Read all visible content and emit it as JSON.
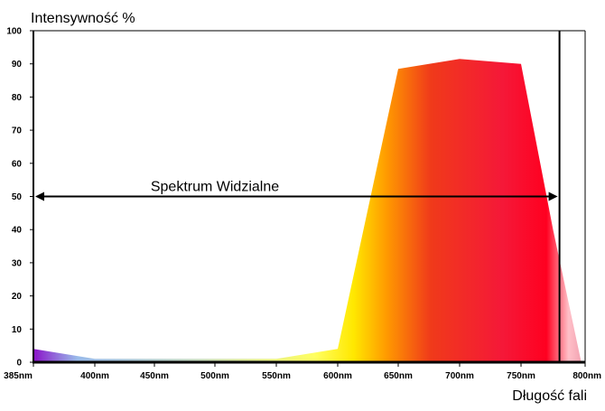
{
  "chart_data": {
    "type": "area",
    "title": "",
    "ylabel": "Intensywność %",
    "xlabel": "Długość fali",
    "x_ticks": [
      "385nm",
      "400nm",
      "450nm",
      "500nm",
      "550nm",
      "600nm",
      "650nm",
      "700nm",
      "750nm",
      "800nm"
    ],
    "y_ticks": [
      "0",
      "10",
      "20",
      "30",
      "40",
      "50",
      "60",
      "70",
      "80",
      "90",
      "100"
    ],
    "ylim": [
      0,
      100
    ],
    "grid": false,
    "series": [
      {
        "x": [
          385,
          400,
          450,
          500,
          550,
          600,
          650,
          700,
          750,
          775,
          797
        ],
        "values": [
          4,
          1,
          1,
          1,
          1,
          4,
          88.5,
          91.5,
          90,
          40,
          0
        ]
      }
    ],
    "annotations": [
      {
        "text": "Spektrum Widzialne",
        "x_start": 385,
        "x_end": 780,
        "y": 50
      }
    ],
    "vertical_line": {
      "x": 780
    },
    "colors": {
      "violet": "#8a10c8",
      "yellow": "#ffe800",
      "orange": "#ff8c00",
      "red": "#ff0020",
      "pink": "#ef9aac"
    }
  }
}
